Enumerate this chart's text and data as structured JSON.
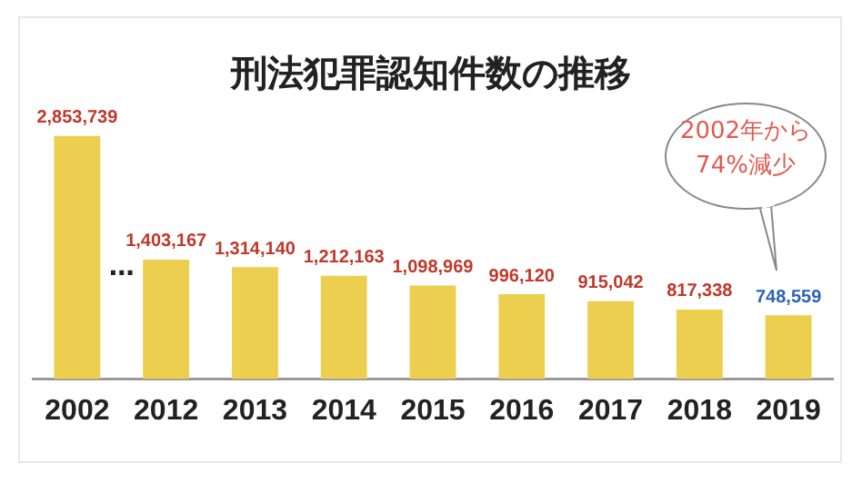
{
  "chart_data": {
    "type": "bar",
    "title": "刑法犯罪認知件数の推移",
    "categories": [
      "2002",
      "2012",
      "2013",
      "2014",
      "2015",
      "2016",
      "2017",
      "2018",
      "2019"
    ],
    "values": [
      2853739,
      1403167,
      1314140,
      1212163,
      1098969,
      996120,
      915042,
      817338,
      748559
    ],
    "value_labels": [
      "2,853,739",
      "1,403,167",
      "1,314,140",
      "1,212,163",
      "1,098,969",
      "996,120",
      "915,042",
      "817,338",
      "748,559"
    ],
    "color": "#edcf4f",
    "grid": false,
    "legend": false,
    "tick_labels": "x",
    "annotations": [
      "…",
      "2002年から\n74%減少"
    ]
  }
}
